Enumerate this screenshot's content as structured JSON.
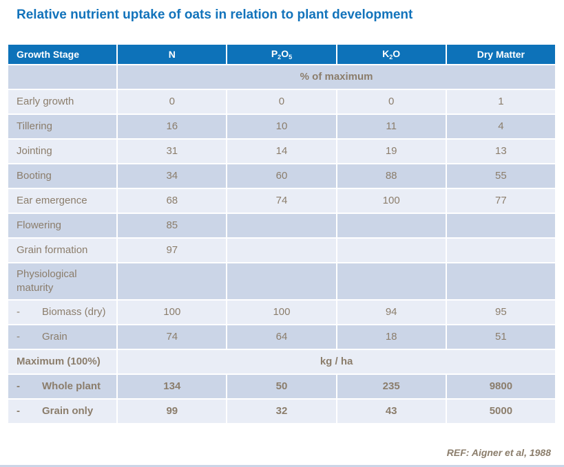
{
  "title": "Relative nutrient uptake of oats in relation to plant development",
  "reference": "REF: Aigner et al, 1988",
  "colors": {
    "header_bg": "#0d72b9",
    "row_dark": "#cbd5e7",
    "row_light": "#e9edf6",
    "text_brown": "#8b7d6b",
    "title_blue": "#1273bb"
  },
  "table": {
    "columns": [
      {
        "id": "growth-stage",
        "segments": [
          {
            "t": "Growth Stage"
          }
        ]
      },
      {
        "id": "n",
        "segments": [
          {
            "t": "N"
          }
        ]
      },
      {
        "id": "p2o5",
        "segments": [
          {
            "t": "P"
          },
          {
            "t": "2",
            "sub": true
          },
          {
            "t": "O"
          },
          {
            "t": "5",
            "sub": true
          }
        ]
      },
      {
        "id": "k2o",
        "segments": [
          {
            "t": "K"
          },
          {
            "t": "2",
            "sub": true
          },
          {
            "t": "O"
          }
        ]
      },
      {
        "id": "dry-matter",
        "segments": [
          {
            "t": "Dry Matter"
          }
        ]
      }
    ],
    "rows": [
      {
        "label": "",
        "span_text": "% of maximum",
        "bold": true
      },
      {
        "label": "Early growth",
        "values": [
          "0",
          "0",
          "0",
          "1"
        ]
      },
      {
        "label": "Tillering",
        "values": [
          "16",
          "10",
          "11",
          "4"
        ]
      },
      {
        "label": "Jointing",
        "values": [
          "31",
          "14",
          "19",
          "13"
        ]
      },
      {
        "label": "Booting",
        "values": [
          "34",
          "60",
          "88",
          "55"
        ]
      },
      {
        "label": "Ear emergence",
        "values": [
          "68",
          "74",
          "100",
          "77"
        ]
      },
      {
        "label": "Flowering",
        "values": [
          "85",
          "",
          "",
          ""
        ]
      },
      {
        "label": "Grain formation",
        "values": [
          "97",
          "",
          "",
          ""
        ]
      },
      {
        "label": "Physiological maturity",
        "values": [
          "",
          "",
          "",
          ""
        ]
      },
      {
        "label": "Biomass (dry)",
        "dash": true,
        "values": [
          "100",
          "100",
          "94",
          "95"
        ]
      },
      {
        "label": "Grain",
        "dash": true,
        "values": [
          "74",
          "64",
          "18",
          "51"
        ]
      },
      {
        "label": "Maximum (100%)",
        "span_text": "kg / ha",
        "bold": true
      },
      {
        "label": "Whole plant",
        "dash": true,
        "bold": true,
        "values": [
          "134",
          "50",
          "235",
          "9800"
        ]
      },
      {
        "label": "Grain only",
        "dash": true,
        "bold": true,
        "values": [
          "99",
          "32",
          "43",
          "5000"
        ]
      }
    ]
  }
}
